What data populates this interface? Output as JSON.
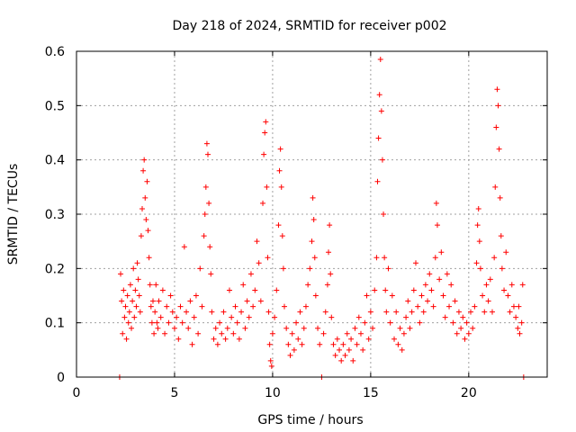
{
  "chart_data": {
    "type": "scatter",
    "title": "Day 218 of 2024, SRMTID for receiver p002",
    "xlabel": "GPS time / hours",
    "ylabel": "SRMTID / TECUs",
    "xlim": [
      0,
      24
    ],
    "ylim": [
      0,
      0.6
    ],
    "xticks": [
      0,
      5,
      10,
      15,
      20
    ],
    "xtick_labels": [
      "0",
      "5",
      "10",
      "15",
      "20"
    ],
    "yticks": [
      0,
      0.1,
      0.2,
      0.3,
      0.4,
      0.5,
      0.6
    ],
    "ytick_labels": [
      "0",
      "0.1",
      "0.2",
      "0.3",
      "0.4",
      "0.5",
      "0.6"
    ],
    "grid": true,
    "marker": "plus",
    "color": "#ff0000",
    "series": [
      {
        "name": "p002",
        "points": [
          [
            2.2,
            0.0
          ],
          [
            2.25,
            0.19
          ],
          [
            2.3,
            0.14
          ],
          [
            2.35,
            0.08
          ],
          [
            2.4,
            0.16
          ],
          [
            2.45,
            0.11
          ],
          [
            2.5,
            0.13
          ],
          [
            2.55,
            0.07
          ],
          [
            2.6,
            0.15
          ],
          [
            2.65,
            0.1
          ],
          [
            2.7,
            0.12
          ],
          [
            2.75,
            0.17
          ],
          [
            2.8,
            0.09
          ],
          [
            2.85,
            0.14
          ],
          [
            2.9,
            0.2
          ],
          [
            2.95,
            0.11
          ],
          [
            3.0,
            0.16
          ],
          [
            3.05,
            0.13
          ],
          [
            3.1,
            0.21
          ],
          [
            3.15,
            0.18
          ],
          [
            3.2,
            0.15
          ],
          [
            3.25,
            0.12
          ],
          [
            3.3,
            0.26
          ],
          [
            3.35,
            0.31
          ],
          [
            3.4,
            0.38
          ],
          [
            3.45,
            0.4
          ],
          [
            3.5,
            0.33
          ],
          [
            3.55,
            0.29
          ],
          [
            3.6,
            0.36
          ],
          [
            3.65,
            0.27
          ],
          [
            3.7,
            0.22
          ],
          [
            3.75,
            0.17
          ],
          [
            3.8,
            0.13
          ],
          [
            3.85,
            0.1
          ],
          [
            3.9,
            0.14
          ],
          [
            3.95,
            0.08
          ],
          [
            4.0,
            0.12
          ],
          [
            4.05,
            0.17
          ],
          [
            4.1,
            0.1
          ],
          [
            4.15,
            0.09
          ],
          [
            4.2,
            0.14
          ],
          [
            4.3,
            0.11
          ],
          [
            4.4,
            0.16
          ],
          [
            4.5,
            0.08
          ],
          [
            4.6,
            0.13
          ],
          [
            4.7,
            0.1
          ],
          [
            4.8,
            0.15
          ],
          [
            4.9,
            0.12
          ],
          [
            5.0,
            0.09
          ],
          [
            5.1,
            0.11
          ],
          [
            5.2,
            0.07
          ],
          [
            5.3,
            0.13
          ],
          [
            5.4,
            0.1
          ],
          [
            5.5,
            0.24
          ],
          [
            5.6,
            0.12
          ],
          [
            5.7,
            0.09
          ],
          [
            5.8,
            0.14
          ],
          [
            5.9,
            0.06
          ],
          [
            6.0,
            0.11
          ],
          [
            6.1,
            0.15
          ],
          [
            6.2,
            0.08
          ],
          [
            6.3,
            0.2
          ],
          [
            6.4,
            0.13
          ],
          [
            6.5,
            0.26
          ],
          [
            6.55,
            0.3
          ],
          [
            6.6,
            0.35
          ],
          [
            6.65,
            0.43
          ],
          [
            6.7,
            0.41
          ],
          [
            6.75,
            0.32
          ],
          [
            6.8,
            0.24
          ],
          [
            6.85,
            0.19
          ],
          [
            6.9,
            0.12
          ],
          [
            7.0,
            0.07
          ],
          [
            7.1,
            0.09
          ],
          [
            7.2,
            0.06
          ],
          [
            7.3,
            0.1
          ],
          [
            7.4,
            0.08
          ],
          [
            7.5,
            0.12
          ],
          [
            7.6,
            0.07
          ],
          [
            7.7,
            0.09
          ],
          [
            7.8,
            0.16
          ],
          [
            7.9,
            0.11
          ],
          [
            8.0,
            0.08
          ],
          [
            8.1,
            0.13
          ],
          [
            8.2,
            0.1
          ],
          [
            8.3,
            0.07
          ],
          [
            8.4,
            0.12
          ],
          [
            8.5,
            0.17
          ],
          [
            8.6,
            0.09
          ],
          [
            8.7,
            0.14
          ],
          [
            8.8,
            0.11
          ],
          [
            8.9,
            0.19
          ],
          [
            9.0,
            0.13
          ],
          [
            9.1,
            0.16
          ],
          [
            9.2,
            0.25
          ],
          [
            9.3,
            0.21
          ],
          [
            9.4,
            0.14
          ],
          [
            9.5,
            0.32
          ],
          [
            9.55,
            0.41
          ],
          [
            9.6,
            0.45
          ],
          [
            9.65,
            0.47
          ],
          [
            9.7,
            0.35
          ],
          [
            9.75,
            0.22
          ],
          [
            9.8,
            0.12
          ],
          [
            9.85,
            0.06
          ],
          [
            9.9,
            0.03
          ],
          [
            9.95,
            0.02
          ],
          [
            10.0,
            0.08
          ],
          [
            10.1,
            0.11
          ],
          [
            10.2,
            0.16
          ],
          [
            10.3,
            0.28
          ],
          [
            10.35,
            0.38
          ],
          [
            10.4,
            0.42
          ],
          [
            10.45,
            0.35
          ],
          [
            10.5,
            0.26
          ],
          [
            10.55,
            0.2
          ],
          [
            10.6,
            0.13
          ],
          [
            10.7,
            0.09
          ],
          [
            10.8,
            0.06
          ],
          [
            10.9,
            0.04
          ],
          [
            11.0,
            0.08
          ],
          [
            11.1,
            0.05
          ],
          [
            11.2,
            0.1
          ],
          [
            11.3,
            0.07
          ],
          [
            11.4,
            0.12
          ],
          [
            11.5,
            0.06
          ],
          [
            11.6,
            0.09
          ],
          [
            11.7,
            0.13
          ],
          [
            11.8,
            0.17
          ],
          [
            11.9,
            0.2
          ],
          [
            12.0,
            0.25
          ],
          [
            12.05,
            0.33
          ],
          [
            12.1,
            0.29
          ],
          [
            12.15,
            0.22
          ],
          [
            12.2,
            0.15
          ],
          [
            12.3,
            0.09
          ],
          [
            12.4,
            0.06
          ],
          [
            12.5,
            0.0
          ],
          [
            12.6,
            0.08
          ],
          [
            12.7,
            0.12
          ],
          [
            12.8,
            0.17
          ],
          [
            12.85,
            0.23
          ],
          [
            12.9,
            0.28
          ],
          [
            12.95,
            0.19
          ],
          [
            13.0,
            0.11
          ],
          [
            13.1,
            0.06
          ],
          [
            13.2,
            0.04
          ],
          [
            13.3,
            0.07
          ],
          [
            13.4,
            0.05
          ],
          [
            13.5,
            0.03
          ],
          [
            13.6,
            0.06
          ],
          [
            13.7,
            0.04
          ],
          [
            13.8,
            0.08
          ],
          [
            13.9,
            0.05
          ],
          [
            14.0,
            0.07
          ],
          [
            14.1,
            0.03
          ],
          [
            14.2,
            0.09
          ],
          [
            14.3,
            0.06
          ],
          [
            14.4,
            0.11
          ],
          [
            14.5,
            0.08
          ],
          [
            14.6,
            0.05
          ],
          [
            14.7,
            0.1
          ],
          [
            14.8,
            0.15
          ],
          [
            14.9,
            0.07
          ],
          [
            15.0,
            0.12
          ],
          [
            15.1,
            0.09
          ],
          [
            15.2,
            0.16
          ],
          [
            15.3,
            0.22
          ],
          [
            15.35,
            0.36
          ],
          [
            15.4,
            0.44
          ],
          [
            15.45,
            0.52
          ],
          [
            15.5,
            0.585
          ],
          [
            15.55,
            0.49
          ],
          [
            15.6,
            0.4
          ],
          [
            15.65,
            0.3
          ],
          [
            15.7,
            0.22
          ],
          [
            15.75,
            0.16
          ],
          [
            15.8,
            0.12
          ],
          [
            15.9,
            0.2
          ],
          [
            16.0,
            0.1
          ],
          [
            16.1,
            0.15
          ],
          [
            16.2,
            0.07
          ],
          [
            16.3,
            0.12
          ],
          [
            16.4,
            0.06
          ],
          [
            16.5,
            0.09
          ],
          [
            16.6,
            0.05
          ],
          [
            16.7,
            0.08
          ],
          [
            16.8,
            0.11
          ],
          [
            16.9,
            0.14
          ],
          [
            17.0,
            0.09
          ],
          [
            17.1,
            0.12
          ],
          [
            17.2,
            0.16
          ],
          [
            17.3,
            0.21
          ],
          [
            17.4,
            0.13
          ],
          [
            17.5,
            0.1
          ],
          [
            17.6,
            0.15
          ],
          [
            17.7,
            0.12
          ],
          [
            17.8,
            0.17
          ],
          [
            17.9,
            0.14
          ],
          [
            18.0,
            0.19
          ],
          [
            18.1,
            0.16
          ],
          [
            18.2,
            0.13
          ],
          [
            18.3,
            0.22
          ],
          [
            18.35,
            0.32
          ],
          [
            18.4,
            0.28
          ],
          [
            18.5,
            0.18
          ],
          [
            18.6,
            0.23
          ],
          [
            18.7,
            0.15
          ],
          [
            18.8,
            0.11
          ],
          [
            18.9,
            0.19
          ],
          [
            19.0,
            0.13
          ],
          [
            19.1,
            0.17
          ],
          [
            19.2,
            0.1
          ],
          [
            19.3,
            0.14
          ],
          [
            19.4,
            0.08
          ],
          [
            19.5,
            0.12
          ],
          [
            19.6,
            0.09
          ],
          [
            19.7,
            0.11
          ],
          [
            19.8,
            0.07
          ],
          [
            19.9,
            0.1
          ],
          [
            20.0,
            0.08
          ],
          [
            20.1,
            0.12
          ],
          [
            20.2,
            0.09
          ],
          [
            20.3,
            0.13
          ],
          [
            20.4,
            0.21
          ],
          [
            20.45,
            0.28
          ],
          [
            20.5,
            0.31
          ],
          [
            20.55,
            0.25
          ],
          [
            20.6,
            0.2
          ],
          [
            20.7,
            0.15
          ],
          [
            20.8,
            0.12
          ],
          [
            20.9,
            0.17
          ],
          [
            21.0,
            0.14
          ],
          [
            21.1,
            0.18
          ],
          [
            21.2,
            0.12
          ],
          [
            21.3,
            0.22
          ],
          [
            21.35,
            0.35
          ],
          [
            21.4,
            0.46
          ],
          [
            21.45,
            0.53
          ],
          [
            21.5,
            0.5
          ],
          [
            21.55,
            0.42
          ],
          [
            21.6,
            0.33
          ],
          [
            21.65,
            0.26
          ],
          [
            21.7,
            0.2
          ],
          [
            21.8,
            0.16
          ],
          [
            21.9,
            0.23
          ],
          [
            22.0,
            0.15
          ],
          [
            22.1,
            0.12
          ],
          [
            22.2,
            0.17
          ],
          [
            22.3,
            0.13
          ],
          [
            22.4,
            0.11
          ],
          [
            22.5,
            0.09
          ],
          [
            22.55,
            0.13
          ],
          [
            22.6,
            0.08
          ],
          [
            22.7,
            0.1
          ],
          [
            22.75,
            0.17
          ],
          [
            22.8,
            0.0
          ]
        ]
      }
    ]
  }
}
